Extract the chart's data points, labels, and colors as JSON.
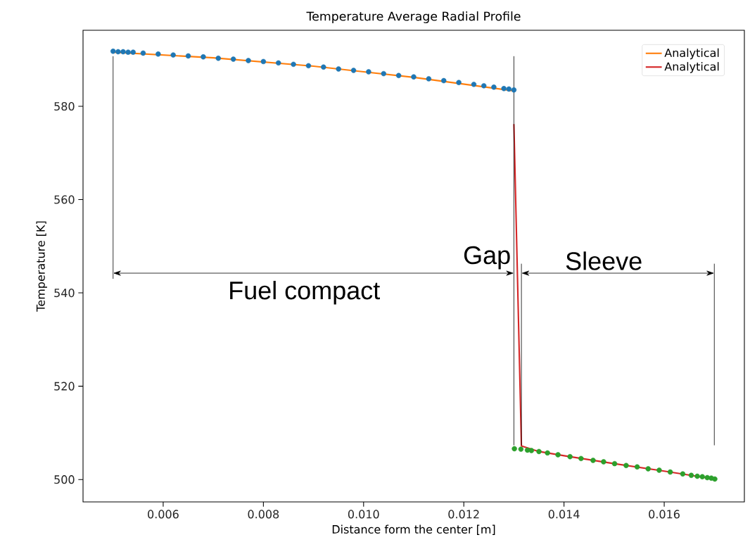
{
  "chart_data": {
    "type": "line",
    "title": "Temperature Average Radial Profile",
    "xlabel": "Distance form the center [m]",
    "ylabel": "Temperature [K]",
    "xlim": [
      0.0044,
      0.0176
    ],
    "ylim": [
      495.2,
      596.3
    ],
    "xticks": [
      {
        "value": 0.006,
        "label": "0.006"
      },
      {
        "value": 0.008,
        "label": "0.008"
      },
      {
        "value": 0.01,
        "label": "0.010"
      },
      {
        "value": 0.012,
        "label": "0.012"
      },
      {
        "value": 0.014,
        "label": "0.014"
      },
      {
        "value": 0.016,
        "label": "0.016"
      }
    ],
    "yticks": [
      500,
      520,
      540,
      560,
      580
    ],
    "legend": "top right",
    "series": [
      {
        "type": "scatter",
        "marker": "circle",
        "color": "#1f77b4",
        "x": [
          0.005,
          0.0051,
          0.0052,
          0.0053,
          0.0054,
          0.0056,
          0.0059,
          0.0062,
          0.0065,
          0.0068,
          0.0071,
          0.0074,
          0.0077,
          0.008,
          0.0083,
          0.0086,
          0.0089,
          0.0092,
          0.0095,
          0.0098,
          0.0101,
          0.0104,
          0.0107,
          0.011,
          0.0113,
          0.0116,
          0.0119,
          0.0122,
          0.0124,
          0.0126,
          0.0128,
          0.0129,
          0.013
        ],
        "values": [
          591.8,
          591.7,
          591.7,
          591.6,
          591.6,
          591.4,
          591.2,
          591.0,
          590.8,
          590.6,
          590.3,
          590.1,
          589.8,
          589.6,
          589.3,
          589.0,
          588.7,
          588.4,
          588.0,
          587.7,
          587.4,
          587.0,
          586.6,
          586.3,
          585.9,
          585.5,
          585.1,
          584.7,
          584.4,
          584.1,
          583.8,
          583.7,
          583.5
        ]
      },
      {
        "name": "Analytical",
        "color": "#ff7f0e",
        "x": [
          0.005,
          0.007,
          0.009,
          0.011,
          0.013
        ],
        "values": [
          591.6,
          590.4,
          588.6,
          586.2,
          583.3
        ]
      },
      {
        "type": "scatter",
        "marker": "circle",
        "color": "#2ca02c",
        "x": [
          0.01301,
          0.01314,
          0.01327,
          0.01335,
          0.0135,
          0.01367,
          0.01388,
          0.01412,
          0.01434,
          0.01458,
          0.01479,
          0.01501,
          0.01524,
          0.01546,
          0.01568,
          0.0159,
          0.01612,
          0.01637,
          0.01654,
          0.01666,
          0.01676,
          0.01686,
          0.01694,
          0.01701
        ],
        "values": [
          506.6,
          506.5,
          506.3,
          506.2,
          506.0,
          505.7,
          505.3,
          504.9,
          504.5,
          504.1,
          503.8,
          503.4,
          503.0,
          502.7,
          502.3,
          502.0,
          501.6,
          501.2,
          500.9,
          500.7,
          500.6,
          500.4,
          500.3,
          500.1
        ]
      },
      {
        "name": "Analytical",
        "color": "#d62728",
        "x": [
          0.013,
          0.01315,
          0.0135,
          0.014,
          0.015,
          0.016,
          0.017
        ],
        "values": [
          576.2,
          507.2,
          506.0,
          505.1,
          503.4,
          501.8,
          500.1
        ]
      }
    ],
    "ref_lines": [
      {
        "axis": "x",
        "value": 0.005,
        "color": "#000000"
      },
      {
        "axis": "x",
        "value": 0.013,
        "color": "#000000"
      },
      {
        "axis": "x",
        "value": 0.01315,
        "color": "#000000"
      },
      {
        "axis": "x",
        "value": 0.017,
        "color": "#000000"
      }
    ],
    "annotations": [
      "Fuel compact",
      "Gap",
      "Sleeve"
    ]
  }
}
